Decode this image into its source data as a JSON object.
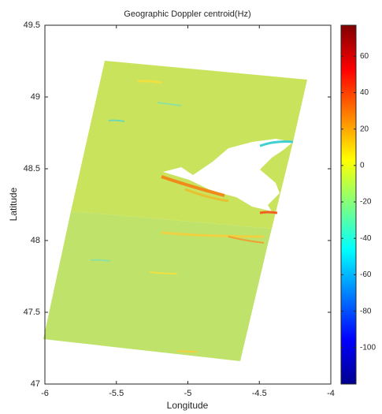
{
  "chart_data": {
    "type": "heatmap",
    "title": "Geographic Doppler centroid(Hz)",
    "xlabel": "Longitude",
    "ylabel": "Latitude",
    "xlim": [
      -6,
      -4
    ],
    "xticks": [
      -6,
      -5.5,
      -5,
      -4.5,
      -4
    ],
    "ylim": [
      47,
      49.5
    ],
    "yticks": [
      47,
      47.5,
      48,
      48.5,
      49,
      49.5
    ],
    "colormap": "jet",
    "clim": [
      -120,
      77
    ],
    "cticks": [
      -100,
      -80,
      -60,
      -40,
      -20,
      0,
      20,
      40,
      60
    ]
  }
}
